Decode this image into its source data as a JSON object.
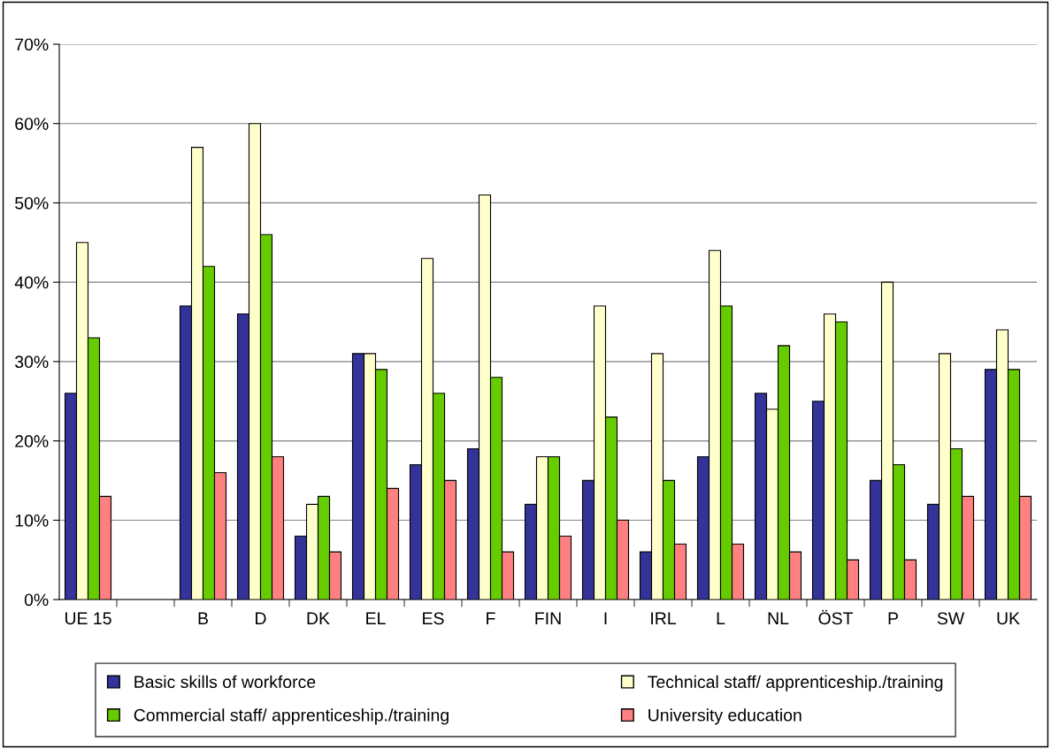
{
  "chart_data": {
    "type": "bar",
    "categories": [
      "UE 15",
      null,
      "B",
      "D",
      "DK",
      "EL",
      "ES",
      "F",
      "FIN",
      "I",
      "IRL",
      "L",
      "NL",
      "ÖST",
      "P",
      "SW",
      "UK"
    ],
    "series": [
      {
        "name": "Basic skills of workforce",
        "color": "#333399",
        "values": [
          26,
          null,
          37,
          36,
          8,
          31,
          17,
          19,
          12,
          15,
          6,
          18,
          26,
          25,
          15,
          12,
          29
        ]
      },
      {
        "name": "Technical staff/ apprenticeship./training",
        "color": "#ffffcc",
        "values": [
          45,
          null,
          57,
          60,
          12,
          31,
          43,
          51,
          18,
          37,
          31,
          44,
          24,
          36,
          40,
          31,
          34
        ]
      },
      {
        "name": "Commercial staff/ apprenticeship./training",
        "color": "#66cc00",
        "values": [
          33,
          null,
          42,
          46,
          13,
          29,
          26,
          28,
          18,
          23,
          15,
          37,
          32,
          35,
          17,
          19,
          29
        ]
      },
      {
        "name": "University education",
        "color": "#ff8080",
        "values": [
          13,
          null,
          16,
          18,
          6,
          14,
          15,
          6,
          8,
          10,
          7,
          7,
          6,
          5,
          5,
          13,
          13
        ]
      }
    ],
    "ylim": [
      0,
      70
    ],
    "yticks": [
      {
        "value": 0,
        "label": "0%"
      },
      {
        "value": 10,
        "label": "10%"
      },
      {
        "value": 20,
        "label": "20%"
      },
      {
        "value": 30,
        "label": "30%"
      },
      {
        "value": 40,
        "label": "40%"
      },
      {
        "value": 50,
        "label": "50%"
      },
      {
        "value": 60,
        "label": "60%"
      },
      {
        "value": 70,
        "label": "70%"
      }
    ],
    "grid": "y",
    "legend": "bottom"
  }
}
